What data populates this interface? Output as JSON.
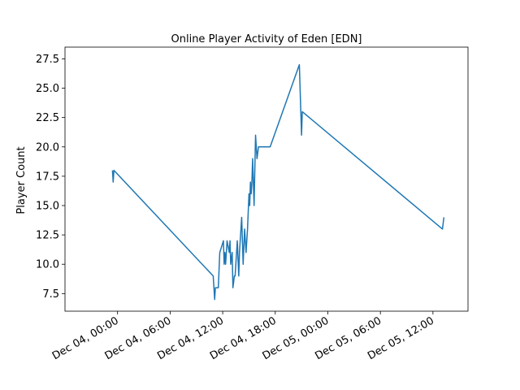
{
  "chart_data": {
    "type": "line",
    "title": "Online Player Activity of Eden [EDN]",
    "xlabel": "",
    "ylabel": "Player Count",
    "x_start": "Dec 03, 18:00",
    "x_end": "Dec 05, 16:00",
    "xlim": [
      "Dec 03, 18:00",
      "Dec 05, 16:00"
    ],
    "ylim": [
      6.0,
      28.5
    ],
    "x_ticks": [
      "Dec 04, 00:00",
      "Dec 04, 06:00",
      "Dec 04, 12:00",
      "Dec 04, 18:00",
      "Dec 05, 00:00",
      "Dec 05, 06:00",
      "Dec 05, 12:00"
    ],
    "x_tick_labels": [
      "Dec 04, 00:00",
      "Dec 04, 06:00",
      "Dec 04, 12:00",
      "Dec 04, 18:00",
      "Dec 05, 00:00",
      "Dec 05, 06:00",
      "Dec 05, 12:00"
    ],
    "y_ticks": [
      7.5,
      10.0,
      12.5,
      15.0,
      17.5,
      20.0,
      22.5,
      25.0,
      27.5
    ],
    "y_tick_labels": [
      "7.5",
      "10.0",
      "12.5",
      "15.0",
      "17.5",
      "20.0",
      "22.5",
      "25.0",
      "27.5"
    ],
    "grid": false,
    "series": [
      {
        "color": "#1f77b4",
        "x": [
          "Dec 03, 23:25",
          "Dec 03, 23:30",
          "Dec 03, 23:35",
          "Dec 04, 10:55",
          "Dec 04, 11:05",
          "Dec 04, 11:10",
          "Dec 04, 11:30",
          "Dec 04, 11:40",
          "Dec 04, 12:05",
          "Dec 04, 12:10",
          "Dec 04, 12:15",
          "Dec 04, 12:20",
          "Dec 04, 12:30",
          "Dec 04, 12:45",
          "Dec 04, 12:50",
          "Dec 04, 12:55",
          "Dec 04, 13:05",
          "Dec 04, 13:10",
          "Dec 04, 13:20",
          "Dec 04, 13:25",
          "Dec 04, 13:40",
          "Dec 04, 13:50",
          "Dec 04, 13:55",
          "Dec 04, 14:00",
          "Dec 04, 14:10",
          "Dec 04, 14:20",
          "Dec 04, 14:30",
          "Dec 04, 14:40",
          "Dec 04, 14:50",
          "Dec 04, 15:00",
          "Dec 04, 15:05",
          "Dec 04, 15:10",
          "Dec 04, 15:15",
          "Dec 04, 15:20",
          "Dec 04, 15:25",
          "Dec 04, 15:35",
          "Dec 04, 15:40",
          "Dec 04, 15:45",
          "Dec 04, 15:55",
          "Dec 04, 16:05",
          "Dec 04, 16:10",
          "Dec 04, 16:15",
          "Dec 04, 16:20",
          "Dec 04, 16:25",
          "Dec 04, 16:30",
          "Dec 04, 16:35",
          "Dec 04, 16:40",
          "Dec 04, 16:45",
          "Dec 04, 16:55",
          "Dec 04, 17:00",
          "Dec 04, 17:05",
          "Dec 04, 17:10",
          "Dec 04, 17:15",
          "Dec 04, 17:20",
          "Dec 04, 17:25",
          "Dec 04, 20:45",
          "Dec 04, 21:00",
          "Dec 04, 21:05",
          "Dec 05, 13:05",
          "Dec 05, 13:15"
        ],
        "values": [
          18,
          17,
          18,
          9,
          7,
          8,
          8,
          11,
          12,
          10,
          11,
          10,
          12,
          11,
          12,
          10,
          11,
          8,
          9,
          9,
          12,
          9,
          11,
          12,
          14,
          10,
          13,
          11,
          13,
          16,
          15,
          17,
          16,
          17,
          19,
          15,
          18,
          21,
          19,
          20,
          20,
          20,
          20,
          20,
          20,
          20,
          20,
          20,
          20,
          20,
          20,
          20,
          20,
          20,
          20,
          27,
          21,
          23,
          13,
          14
        ]
      }
    ]
  }
}
